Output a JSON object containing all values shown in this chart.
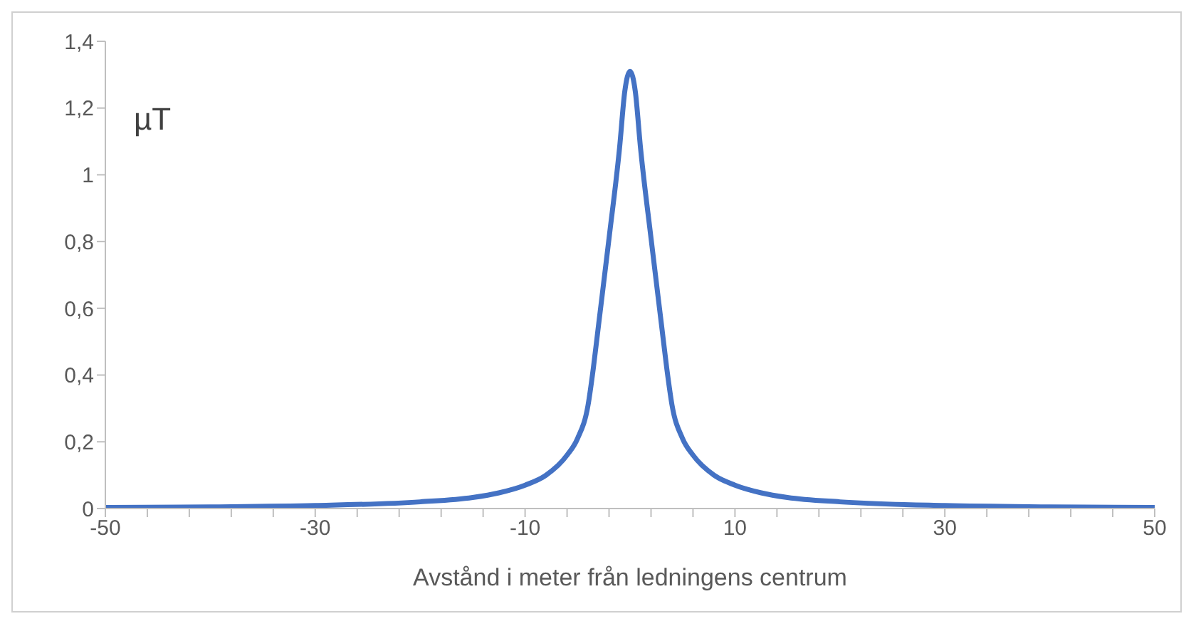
{
  "chart_data": {
    "type": "line",
    "xlabel": "Avstånd i meter från ledningens centrum",
    "annotations": [
      "µT"
    ],
    "x": [
      -50,
      -40,
      -30,
      -20,
      -15,
      -12.5,
      -10,
      -8,
      -6,
      -5,
      -4,
      -3.5,
      -3,
      -2,
      -1,
      -0.5,
      0,
      0.5,
      1,
      2,
      3,
      3.5,
      4,
      5,
      6,
      8,
      10,
      12.5,
      15,
      20,
      30,
      40,
      50
    ],
    "series": [
      {
        "color": "#4472c4",
        "values": [
          0.003,
          0.005,
          0.009,
          0.02,
          0.033,
          0.047,
          0.07,
          0.1,
          0.16,
          0.21,
          0.31,
          0.42,
          0.55,
          0.81,
          1.08,
          1.25,
          1.31,
          1.25,
          1.08,
          0.81,
          0.55,
          0.42,
          0.31,
          0.21,
          0.16,
          0.1,
          0.07,
          0.047,
          0.033,
          0.02,
          0.009,
          0.005,
          0.003
        ]
      }
    ],
    "xlim": [
      -50,
      50
    ],
    "xticks": [
      -50,
      {
        "value": -46,
        "label": null
      },
      {
        "value": -42,
        "label": null
      },
      {
        "value": -38,
        "label": null
      },
      {
        "value": -34,
        "label": null
      },
      -30,
      {
        "value": -26,
        "label": null
      },
      {
        "value": -22,
        "label": null
      },
      {
        "value": -18,
        "label": null
      },
      {
        "value": -14,
        "label": null
      },
      -10,
      {
        "value": -6,
        "label": null
      },
      {
        "value": -2,
        "label": null
      },
      {
        "value": 2,
        "label": null
      },
      {
        "value": 6,
        "label": null
      },
      10,
      {
        "value": 14,
        "label": null
      },
      {
        "value": 18,
        "label": null
      },
      {
        "value": 22,
        "label": null
      },
      {
        "value": 26,
        "label": null
      },
      30,
      {
        "value": 34,
        "label": null
      },
      {
        "value": 38,
        "label": null
      },
      {
        "value": 42,
        "label": null
      },
      {
        "value": 46,
        "label": null
      },
      50
    ],
    "ylim": [
      0,
      1.4
    ],
    "yticks": [
      0,
      {
        "value": 0.2,
        "label": "0,2"
      },
      {
        "value": 0.4,
        "label": "0,4"
      },
      {
        "value": 0.6,
        "label": "0,6"
      },
      {
        "value": 0.8,
        "label": "0,8"
      },
      1,
      {
        "value": 1.2,
        "label": "1,2"
      },
      {
        "value": 1.4,
        "label": "1,4"
      }
    ],
    "grid": false,
    "legend": false,
    "marker": "none",
    "line_style": "solid"
  }
}
